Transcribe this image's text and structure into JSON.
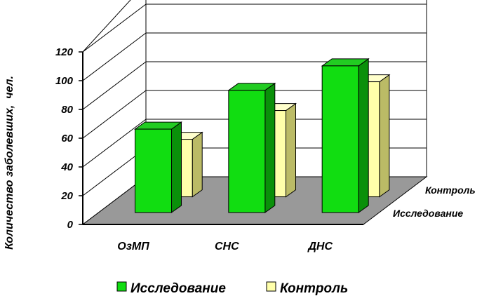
{
  "chart_data": {
    "type": "bar",
    "style": "3d-clustered",
    "ylabel": "Количество заболевших,  чел.",
    "xlabel": "",
    "ylim": [
      0,
      120
    ],
    "yticks": [
      "0",
      "20",
      "40",
      "60",
      "80",
      "100",
      "120"
    ],
    "categories": [
      "ОзМП",
      "СНС",
      "ДНС"
    ],
    "depth_labels": [
      "Контроль",
      "Исследование"
    ],
    "series": [
      {
        "name": "Исследование",
        "values": [
          58,
          85,
          102
        ],
        "color": "#11dd11"
      },
      {
        "name": "Контроль",
        "values": [
          40,
          60,
          80
        ],
        "color": "#ffffaa"
      }
    ],
    "grid": true,
    "legend": "bottom",
    "colors": {
      "floor": "#999999",
      "gridline": "#000000",
      "axis": "#000000"
    }
  }
}
